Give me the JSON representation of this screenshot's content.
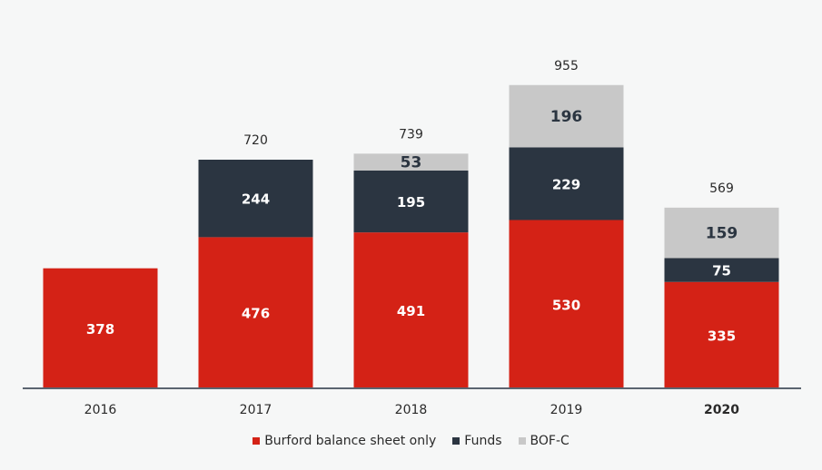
{
  "chart_data": {
    "type": "bar",
    "stacked": true,
    "categories": [
      "2016",
      "2017",
      "2018",
      "2019",
      "2020"
    ],
    "series": [
      {
        "name": "Burford balance sheet only",
        "color": "#d42216",
        "values": [
          378,
          476,
          491,
          530,
          335
        ],
        "labels": [
          "378",
          "476",
          "491",
          "530",
          "335"
        ]
      },
      {
        "name": "Funds",
        "color": "#2b3541",
        "values": [
          0,
          244,
          195,
          229,
          75
        ],
        "labels": [
          "",
          "244",
          "195",
          "229",
          "75"
        ]
      },
      {
        "name": "BOF-C",
        "color": "#c8c8c8",
        "values": [
          0,
          0,
          53,
          196,
          159
        ],
        "labels": [
          "",
          "",
          "53",
          "196",
          "159"
        ]
      }
    ],
    "totals": [
      "",
      "720",
      "739",
      "955",
      "569"
    ],
    "ylim": [
      0,
      1000
    ],
    "title": "",
    "xlabel": "",
    "ylabel": "",
    "grid": false,
    "legend_position": "bottom"
  }
}
